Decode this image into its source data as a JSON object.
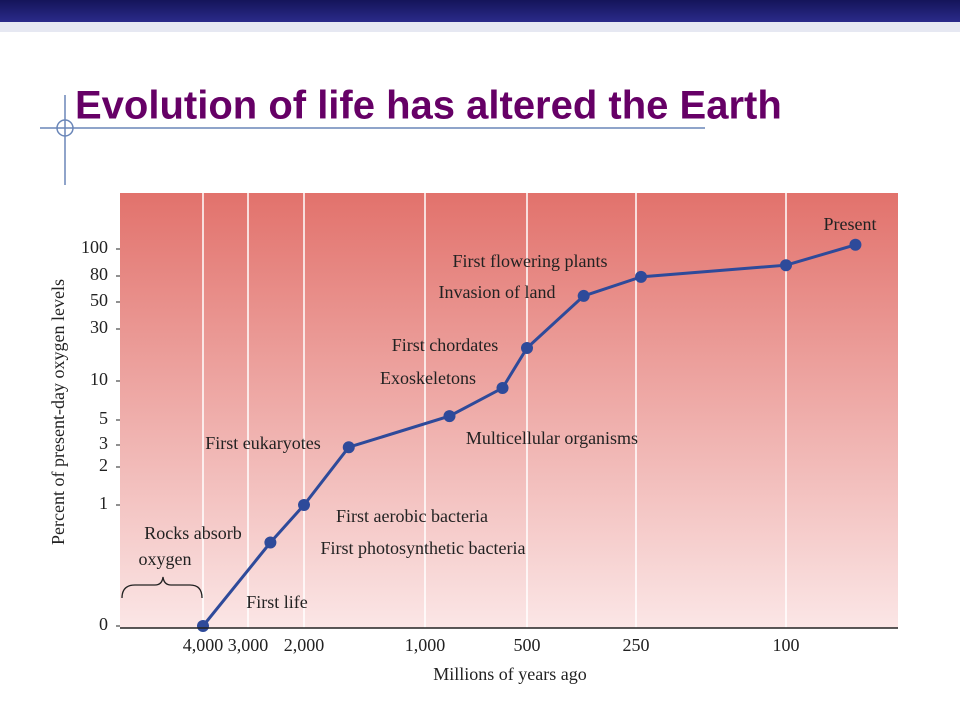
{
  "chart_data": {
    "type": "line",
    "title": "Evolution of life has altered the Earth",
    "x_label": "Millions of years ago",
    "y_label": "Percent of present-day oxygen levels",
    "x": [
      4000,
      2600,
      2000,
      1630,
      880,
      620,
      500,
      370,
      245,
      100,
      38
    ],
    "series": [
      {
        "color": "#2e4a9a",
        "values": [
          0,
          0.69,
          1,
          2.9,
          5.5,
          9.1,
          22.7,
          57,
          79,
          88,
          103
        ]
      }
    ],
    "xlim": [
      5800,
      0
    ],
    "xticks": [
      {
        "value": 4000,
        "label": "4,000"
      },
      {
        "value": 3000,
        "label": "3,000"
      },
      {
        "value": 2000,
        "label": "2,000"
      },
      {
        "value": 1000,
        "label": "1,000"
      },
      500,
      250,
      100
    ],
    "ylim": [
      0,
      140
    ],
    "yticks": [
      0,
      1,
      2,
      3,
      5,
      10,
      30,
      50,
      80,
      100
    ],
    "grid": true,
    "annotations": [
      "Present",
      "First flowering plants",
      "Invasion of land",
      "First chordates",
      "Exoskeletons",
      "Multicellular organisms",
      "First eukaryotes",
      "First aerobic bacteria",
      "First photosynthetic bacteria",
      "First life",
      "Rocks absorb",
      "oxygen"
    ]
  }
}
